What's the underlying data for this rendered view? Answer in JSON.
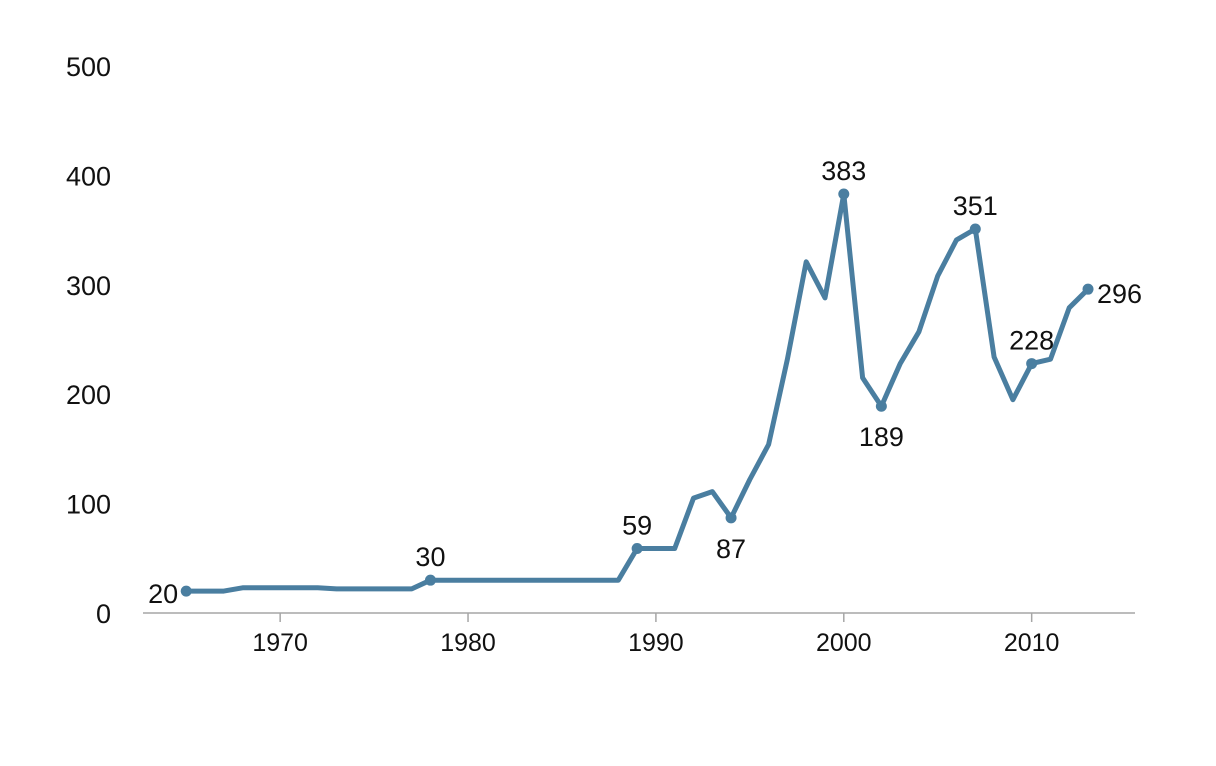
{
  "chart_data": {
    "type": "line",
    "title": "",
    "xlabel": "",
    "ylabel": "",
    "xlim": [
      1962.7,
      2015.5
    ],
    "ylim": [
      0,
      500
    ],
    "grid": false,
    "legend": "none",
    "line_color": "#4a7ea0",
    "axis_color": "#a6a6a6",
    "x_ticks": [
      1970,
      1980,
      1990,
      2000,
      2010
    ],
    "y_ticks": [
      0,
      100,
      200,
      300,
      400,
      500
    ],
    "series": [
      {
        "x": [
          1965,
          1966,
          1967,
          1968,
          1969,
          1970,
          1971,
          1972,
          1973,
          1974,
          1975,
          1976,
          1977,
          1978,
          1979,
          1980,
          1981,
          1982,
          1983,
          1984,
          1985,
          1986,
          1987,
          1988,
          1989,
          1990,
          1991,
          1992,
          1993,
          1994,
          1995,
          1996,
          1997,
          1998,
          1999,
          2000,
          2001,
          2002,
          2003,
          2004,
          2005,
          2006,
          2007,
          2008,
          2009,
          2010,
          2011,
          2012,
          2013
        ],
        "y": [
          20,
          20,
          20,
          23,
          23,
          23,
          23,
          23,
          22,
          22,
          22,
          22,
          22,
          30,
          30,
          30,
          30,
          30,
          30,
          30,
          30,
          30,
          30,
          30,
          59,
          59,
          59,
          105,
          111,
          87,
          122,
          154,
          232,
          321,
          288,
          383,
          215,
          189,
          228,
          257,
          308,
          341,
          351,
          234,
          195,
          228,
          232,
          279,
          296
        ]
      }
    ],
    "annotations": [
      {
        "x": 1965,
        "y": 20,
        "label": "20",
        "pos": "left"
      },
      {
        "x": 1978,
        "y": 30,
        "label": "30",
        "pos": "above"
      },
      {
        "x": 1989,
        "y": 59,
        "label": "59",
        "pos": "above"
      },
      {
        "x": 1994,
        "y": 87,
        "label": "87",
        "pos": "below"
      },
      {
        "x": 2000,
        "y": 383,
        "label": "383",
        "pos": "above"
      },
      {
        "x": 2002,
        "y": 189,
        "label": "189",
        "pos": "below"
      },
      {
        "x": 2007,
        "y": 351,
        "label": "351",
        "pos": "above"
      },
      {
        "x": 2010,
        "y": 228,
        "label": "228",
        "pos": "above"
      },
      {
        "x": 2013,
        "y": 296,
        "label": "296",
        "pos": "right"
      }
    ]
  }
}
